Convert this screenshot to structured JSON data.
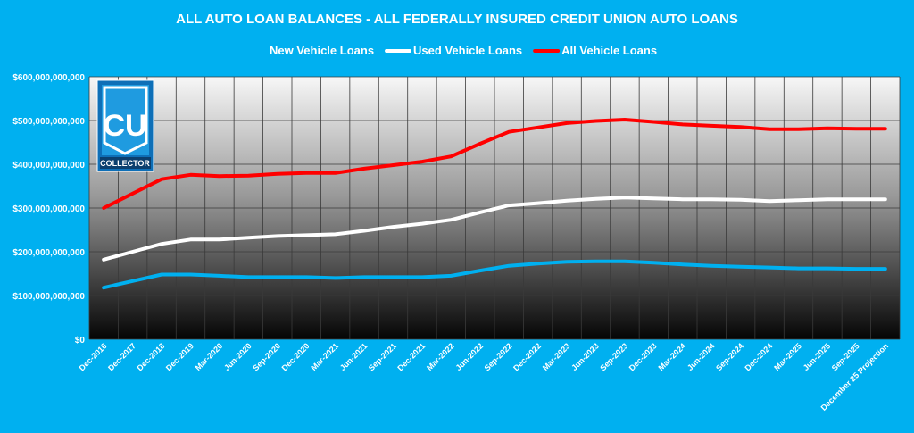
{
  "chart_data": {
    "type": "line",
    "title": "ALL AUTO LOAN BALANCES - ALL FEDERALLY INSURED CREDIT UNION AUTO LOANS",
    "xlabel": "",
    "ylabel": "",
    "ylim": [
      0,
      600000000000
    ],
    "yticks": [
      "$600,000,000,000",
      "$500,000,000,000",
      "$400,000,000,000",
      "$300,000,000,000",
      "$200,000,000,000",
      "$100,000,000,000",
      "$0"
    ],
    "ytick_values": [
      600000000000,
      500000000000,
      400000000000,
      300000000000,
      200000000000,
      100000000000,
      0
    ],
    "grid": true,
    "legend_position": "top-center",
    "categories": [
      "Dec-2016",
      "Dec-2017",
      "Dec-2018",
      "Dec-2019",
      "Mar-2020",
      "Jun-2020",
      "Sep-2020",
      "Dec-2020",
      "Mar-2021",
      "Jun-2021",
      "Sep-2021",
      "Dec-2021",
      "Mar-2022",
      "Jun-2022",
      "Sep-2022",
      "Dec-2022",
      "Mar-2023",
      "Jun-2023",
      "Sep-2023",
      "Dec-2023",
      "Mar-2024",
      "Jun-2024",
      "Sep-2024",
      "Dec-2024",
      "Mar-2025",
      "Jun-2025",
      "Sep-2025",
      "December 25 Projection"
    ],
    "series": [
      {
        "name": "New Vehicle Loans",
        "color": "#00b0f0",
        "values": [
          118000000000,
          133000000000,
          148000000000,
          148000000000,
          145000000000,
          142000000000,
          142000000000,
          142000000000,
          140000000000,
          142000000000,
          142000000000,
          142000000000,
          145000000000,
          157000000000,
          168000000000,
          173000000000,
          177000000000,
          178000000000,
          178000000000,
          175000000000,
          171000000000,
          168000000000,
          166000000000,
          164000000000,
          162000000000,
          162000000000,
          161000000000,
          161000000000
        ]
      },
      {
        "name": "Used Vehicle Loans",
        "color": "#ffffff",
        "values": [
          182000000000,
          200000000000,
          218000000000,
          228000000000,
          228000000000,
          232000000000,
          236000000000,
          238000000000,
          240000000000,
          248000000000,
          257000000000,
          264000000000,
          273000000000,
          290000000000,
          306000000000,
          311000000000,
          317000000000,
          321000000000,
          324000000000,
          322000000000,
          320000000000,
          320000000000,
          319000000000,
          316000000000,
          318000000000,
          320000000000,
          320000000000,
          320000000000
        ]
      },
      {
        "name": "All Vehicle Loans",
        "color": "#ff0000",
        "values": [
          300000000000,
          333000000000,
          366000000000,
          376000000000,
          373000000000,
          374000000000,
          378000000000,
          380000000000,
          380000000000,
          390000000000,
          398000000000,
          406000000000,
          418000000000,
          447000000000,
          474000000000,
          484000000000,
          494000000000,
          499000000000,
          502000000000,
          497000000000,
          491000000000,
          488000000000,
          485000000000,
          480000000000,
          480000000000,
          482000000000,
          481000000000,
          481000000000
        ]
      }
    ]
  },
  "logo": {
    "letters": "CU",
    "banner": "COLLECTOR"
  },
  "colors": {
    "background": "#00b0f0",
    "text": "#ffffff"
  }
}
